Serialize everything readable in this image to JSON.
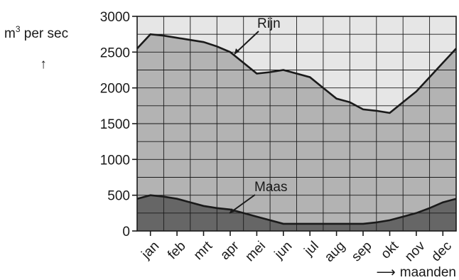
{
  "chart_data": {
    "type": "area",
    "categories": [
      "jan",
      "feb",
      "mrt",
      "apr",
      "mei",
      "jun",
      "jul",
      "aug",
      "sep",
      "okt",
      "nov",
      "dec"
    ],
    "x": [
      0,
      1,
      2,
      3,
      4,
      5,
      6,
      7,
      8,
      9,
      10,
      11,
      12,
      13,
      14,
      15,
      16,
      17,
      18,
      19,
      20,
      21,
      22,
      23,
      24
    ],
    "series": [
      {
        "name": "Rijn",
        "values": [
          2550,
          2750,
          2730,
          2700,
          2670,
          2640,
          2580,
          2500,
          2350,
          2200,
          2220,
          2250,
          2200,
          2150,
          2000,
          1850,
          1800,
          1700,
          1680,
          1650,
          1800,
          1950,
          2150,
          2350,
          2550
        ],
        "color": "#1a1a1a"
      },
      {
        "name": "Maas",
        "values": [
          450,
          500,
          480,
          450,
          400,
          350,
          320,
          300,
          250,
          200,
          150,
          100,
          100,
          100,
          100,
          100,
          100,
          100,
          120,
          150,
          200,
          250,
          320,
          400,
          450
        ],
        "color": "#1a1a1a"
      }
    ],
    "ylabel_prefix": "m",
    "ylabel_sup": "3",
    "ylabel_suffix": " per sec",
    "ylabel_arrow": "↑",
    "xlabel": "maanden",
    "xlabel_arrow": "⟶",
    "yticks": [
      "0",
      "500",
      "1000",
      "1500",
      "2000",
      "2500",
      "3000"
    ],
    "ylim": [
      0,
      3000
    ],
    "xlim": [
      0,
      24
    ],
    "grid": true,
    "colors": {
      "above": "#e6e6e6",
      "rijn_fill": "#b3b3b3",
      "maas_fill": "#666666",
      "grid": "#1a1a1a",
      "line": "#1a1a1a"
    }
  }
}
